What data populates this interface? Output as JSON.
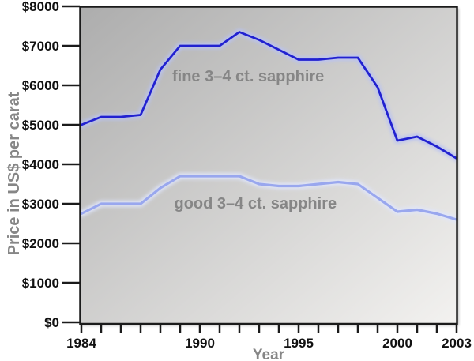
{
  "chart_data": {
    "type": "line",
    "title": "",
    "xlabel": "Year",
    "ylabel": "Price in US$ per carat",
    "x": [
      1984,
      1985,
      1986,
      1987,
      1988,
      1989,
      1990,
      1991,
      1992,
      1993,
      1994,
      1995,
      1996,
      1997,
      1998,
      1999,
      2000,
      2001,
      2002,
      2003
    ],
    "series": [
      {
        "name": "fine 3–4 ct. sapphire",
        "color": "#2121d0",
        "halo_color": "#b9c2f2",
        "stroke_width": 2.8,
        "values": [
          5000,
          5200,
          5200,
          5250,
          6400,
          7000,
          7000,
          7000,
          7350,
          7150,
          6900,
          6650,
          6650,
          6700,
          6700,
          5950,
          4600,
          4700,
          4450,
          4150
        ],
        "label_pos": {
          "year": 1988.6,
          "value": 6100
        }
      },
      {
        "name": "good 3–4 ct. sapphire",
        "color": "#99a7ee",
        "halo_color": "#e0e6fc",
        "stroke_width": 3.2,
        "values": [
          2750,
          3000,
          3000,
          3000,
          3400,
          3700,
          3700,
          3700,
          3700,
          3500,
          3450,
          3450,
          3500,
          3550,
          3500,
          3150,
          2800,
          2850,
          2750,
          2600
        ],
        "label_pos": {
          "year": 1988.7,
          "value": 2880
        }
      }
    ],
    "xlim": [
      1984,
      2003
    ],
    "ylim": [
      0,
      8000
    ],
    "y_tick_labels": [
      "$0",
      "$1000",
      "$2000",
      "$3000",
      "$4000",
      "$5000",
      "$6000",
      "$7000",
      "$8000"
    ],
    "y_tick_step": 1000,
    "x_tick_step": 1,
    "x_labeled_ticks": [
      1984,
      1990,
      1995,
      2000,
      2003
    ],
    "grid": false,
    "legend": "inline-labels",
    "plot_background": {
      "gradient_from": "#adadad",
      "gradient_to": "#f3f2f0",
      "direction": "top-left to bottom-right"
    },
    "annotation_color": "#868686",
    "axis_color": "#1b1b1b",
    "tick_label_color": "#111111"
  }
}
